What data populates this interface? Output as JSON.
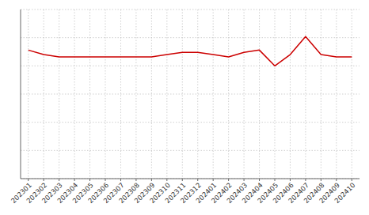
{
  "chart_data": {
    "type": "line",
    "categories": [
      "202301",
      "202302",
      "202303",
      "202304",
      "202305",
      "202306",
      "202307",
      "202308",
      "202309",
      "202310",
      "202311",
      "202312",
      "202401",
      "202402",
      "202403",
      "202404",
      "202405",
      "202406",
      "202407",
      "202408",
      "202409",
      "202410"
    ],
    "values": [
      97,
      95,
      94,
      94,
      94,
      94,
      94,
      94,
      94,
      95,
      96,
      96,
      95,
      94,
      96,
      97,
      90,
      95,
      103,
      95,
      94,
      94
    ],
    "color": "#cc0000",
    "ylim": [
      40,
      115
    ],
    "yticks": [
      40,
      52.5,
      65,
      77.5,
      90,
      102.5,
      115
    ],
    "grid": true,
    "tick_labels": "x"
  }
}
